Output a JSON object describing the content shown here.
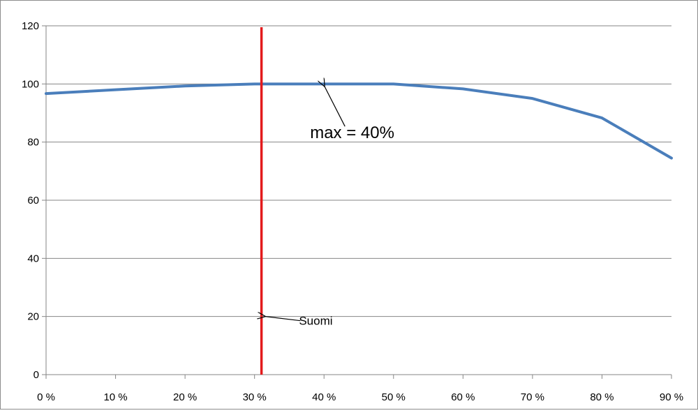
{
  "chart_data": {
    "type": "line",
    "title": "",
    "xlabel": "",
    "ylabel": "",
    "x": [
      0,
      10,
      20,
      30,
      40,
      50,
      60,
      70,
      80,
      90
    ],
    "x_tick_labels": [
      "0 %",
      "10 %",
      "20 %",
      "30 %",
      "40 %",
      "50 %",
      "60 %",
      "70 %",
      "80 %",
      "90 %"
    ],
    "y_ticks": [
      0,
      20,
      40,
      60,
      80,
      100,
      120
    ],
    "y_tick_labels": [
      "0",
      "20",
      "40",
      "60",
      "80",
      "100",
      "120"
    ],
    "xlim": [
      0,
      90
    ],
    "ylim": [
      0,
      120
    ],
    "grid": "horizontal",
    "series": [
      {
        "values": [
          96.7,
          98,
          99.3,
          100,
          100,
          100,
          98.3,
          95,
          88.3,
          74.5
        ],
        "color": "#4a7ebb"
      }
    ],
    "vertical_line": {
      "x": 31,
      "color": "#e31a1c"
    },
    "annotations": [
      {
        "text": "max = 40%",
        "text_x": 40,
        "text_y": 83,
        "arrow_to_x": 40,
        "arrow_to_y": 100
      },
      {
        "text": "Suomi",
        "text_x": 37,
        "text_y": 20,
        "arrow_to_x": 31,
        "arrow_to_y": 20
      }
    ]
  }
}
